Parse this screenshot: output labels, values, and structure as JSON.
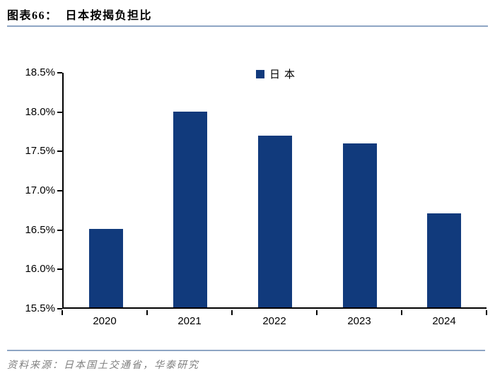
{
  "header": {
    "title": "图表66：  日本按揭负担比"
  },
  "chart_data": {
    "type": "bar",
    "title": "日本按揭负担比",
    "categories": [
      "2020",
      "2021",
      "2022",
      "2023",
      "2024"
    ],
    "series": [
      {
        "name": "日本",
        "values": [
          16.5,
          18.0,
          17.7,
          17.6,
          16.7
        ]
      }
    ],
    "xlabel": "",
    "ylabel": "",
    "ylim": [
      15.5,
      18.5
    ],
    "ytick_step": 0.5,
    "ytick_suffix": "%",
    "grid": false,
    "legend_position": "top-center",
    "bar_color": "#113A7C"
  },
  "legend": {
    "label": "日本"
  },
  "footer": {
    "source": "资料来源：日本国土交通省，华泰研究"
  },
  "colors": {
    "bar": "#113A7C",
    "rule_line": "#8EA5C4",
    "axis": "#000000",
    "source_text": "#808080"
  }
}
